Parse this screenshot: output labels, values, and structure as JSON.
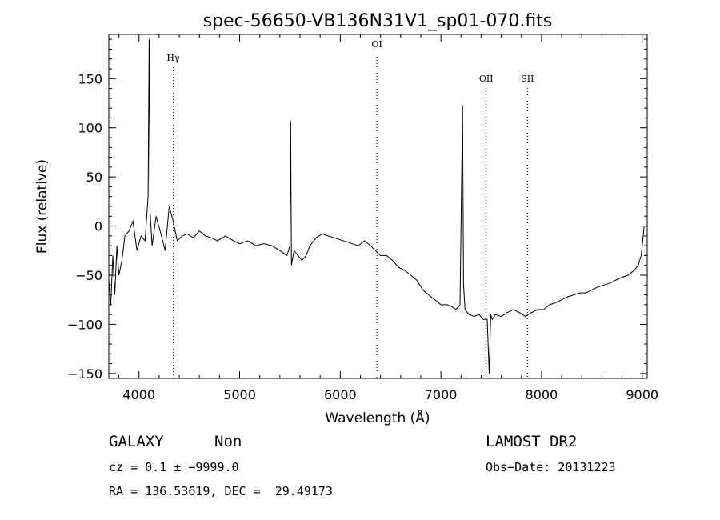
{
  "chart_data": {
    "type": "line",
    "title": "spec-56650-VB136N31V1_sp01-070.fits",
    "xlabel": "Wavelength (Å)",
    "ylabel": "Flux (relative)",
    "xlim": [
      3700,
      9050
    ],
    "ylim": [
      -155,
      195
    ],
    "x_ticks": [
      4000,
      5000,
      6000,
      7000,
      8000,
      9000
    ],
    "y_ticks": [
      -150,
      -100,
      -50,
      0,
      50,
      100,
      150
    ],
    "x_tick_labels": [
      "4000",
      "5000",
      "6000",
      "7000",
      "8000",
      "9000"
    ],
    "y_tick_labels": [
      "−150",
      "−100",
      "−50",
      "0",
      "50",
      "100",
      "150"
    ],
    "grid": false,
    "lines": [
      {
        "label": "Hγ",
        "x": 4340,
        "y": 168
      },
      {
        "label": "OI",
        "x": 6364,
        "y": 182
      },
      {
        "label": "OII",
        "x": 7450,
        "y": 147
      },
      {
        "label": "SII",
        "x": 7860,
        "y": 147
      }
    ],
    "series": [
      {
        "x": [
          3700,
          3720,
          3740,
          3760,
          3780,
          3800,
          3830,
          3860,
          3900,
          3940,
          3980,
          4020,
          4060,
          4090,
          4101,
          4110,
          4130,
          4170,
          4210,
          4260,
          4300,
          4340,
          4380,
          4430,
          4480,
          4540,
          4600,
          4660,
          4720,
          4780,
          4860,
          4940,
          5000,
          5080,
          5160,
          5240,
          5320,
          5400,
          5470,
          5500,
          5507,
          5515,
          5540,
          5580,
          5620,
          5660,
          5700,
          5760,
          5820,
          5880,
          5940,
          6000,
          6060,
          6120,
          6180,
          6240,
          6300,
          6350,
          6400,
          6460,
          6520,
          6580,
          6640,
          6700,
          6760,
          6820,
          6880,
          6940,
          7000,
          7060,
          7110,
          7150,
          7190,
          7215,
          7225,
          7240,
          7280,
          7330,
          7380,
          7420,
          7460,
          7480,
          7495,
          7510,
          7540,
          7600,
          7660,
          7720,
          7780,
          7840,
          7900,
          7960,
          8020,
          8080,
          8140,
          8200,
          8260,
          8320,
          8380,
          8440,
          8500,
          8560,
          8620,
          8680,
          8740,
          8800,
          8860,
          8920,
          8960,
          8990,
          9010,
          9020
        ],
        "y": [
          -55,
          -80,
          -30,
          -70,
          -20,
          -50,
          -35,
          -10,
          -5,
          5,
          -25,
          -10,
          -15,
          30,
          190,
          15,
          -20,
          10,
          -5,
          -25,
          20,
          5,
          -15,
          -10,
          -8,
          -12,
          -5,
          -10,
          -12,
          -15,
          -10,
          -15,
          -18,
          -15,
          -20,
          -18,
          -20,
          -25,
          -30,
          -20,
          107,
          -40,
          -25,
          -30,
          -35,
          -30,
          -20,
          -12,
          -8,
          -10,
          -12,
          -14,
          -16,
          -18,
          -20,
          -15,
          -20,
          -25,
          -30,
          -30,
          -35,
          -42,
          -45,
          -50,
          -55,
          -65,
          -70,
          -75,
          -80,
          -80,
          -82,
          -85,
          -80,
          123,
          -60,
          -85,
          -90,
          -92,
          -90,
          -95,
          -95,
          -150,
          -90,
          -95,
          -90,
          -92,
          -88,
          -85,
          -88,
          -92,
          -88,
          -85,
          -85,
          -80,
          -78,
          -75,
          -72,
          -70,
          -68,
          -68,
          -65,
          -62,
          -60,
          -58,
          -55,
          -52,
          -50,
          -45,
          -40,
          -30,
          -10,
          0
        ]
      }
    ]
  },
  "info": {
    "object_class": "GALAXY",
    "subclass": "Non",
    "survey": "LAMOST DR2",
    "redshift": "cz = 0.1 ± −9999.0",
    "obs_date": "Obs−Date: 20131223",
    "coords": "RA = 136.53619, DEC =  29.49173"
  }
}
